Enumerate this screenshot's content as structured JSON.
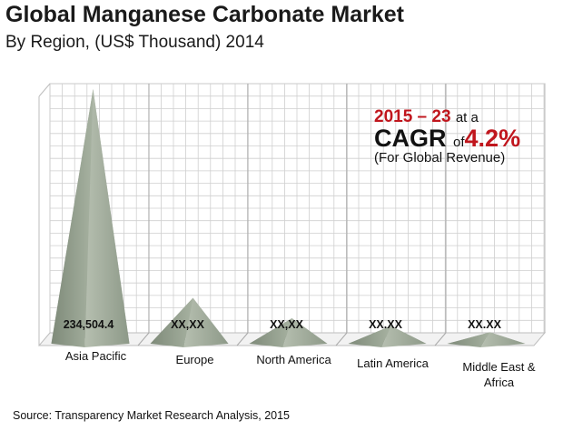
{
  "header": {
    "title": "Global Manganese Carbonate Market",
    "subtitle": "By Region, (US$ Thousand) 2014"
  },
  "callout": {
    "period": "2015 – 23",
    "at_a": "at a",
    "cagr_word": "CAGR",
    "of_word": "of",
    "rate": "4.2%",
    "note": "(For Global Revenue)"
  },
  "source": "Source: Transparency Market Research Analysis, 2015",
  "colors": {
    "pyramid": "#8f9c8a",
    "pyramid_light": "#b9c3b3",
    "pyramid_dark": "#6f7b6b",
    "grid": "#cfcfcf",
    "accent_red": "#c0161d"
  },
  "chart_data": {
    "type": "bar",
    "style": "3d-pyramid",
    "title": "Global Manganese Carbonate Market",
    "subtitle": "By Region, (US$ Thousand) 2014",
    "categories": [
      "Asia Pacific",
      "Europe",
      "North America",
      "Latin America",
      "Middle East & Africa"
    ],
    "value_labels": [
      "234,504.4",
      "XX,XX",
      "XX,XX",
      "XX.XX",
      "XX.XX"
    ],
    "relative_heights": [
      1.0,
      0.18,
      0.1,
      0.07,
      0.045
    ],
    "values": [
      234504.4,
      null,
      null,
      null,
      null
    ],
    "grid": true,
    "legend": "none"
  }
}
